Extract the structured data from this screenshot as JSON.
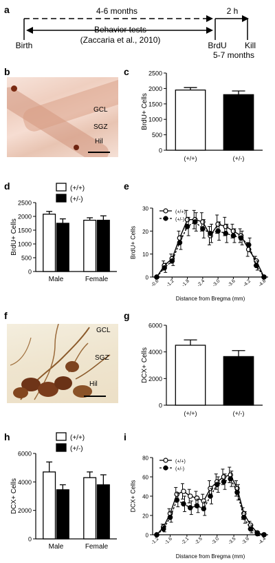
{
  "panels": {
    "a": {
      "letter": "a",
      "months_range": "4-6 months",
      "hours": "2 h",
      "behavior_tests": "Behavior tests",
      "citation": "(Zaccaria et al., 2010)",
      "birth": "Birth",
      "brdu": "BrdU",
      "kill": "Kill",
      "age_at_brdu": "5-7 months"
    },
    "b": {
      "letter": "b",
      "labels": [
        "GCL",
        "SGZ",
        "Hil"
      ]
    },
    "c": {
      "letter": "c"
    },
    "d": {
      "letter": "d"
    },
    "e": {
      "letter": "e"
    },
    "f": {
      "letter": "f",
      "labels": [
        "GCL",
        "SGZ",
        "Hil"
      ]
    },
    "g": {
      "letter": "g"
    },
    "h": {
      "letter": "h"
    },
    "i": {
      "letter": "i"
    }
  },
  "colors": {
    "wt": "#ffffff",
    "het": "#000000",
    "stroke": "#000000"
  },
  "chart_data": [
    {
      "id": "c",
      "type": "bar",
      "categories": [
        "(+/+)",
        "(+/-)"
      ],
      "values": [
        1950,
        1800
      ],
      "errors": [
        80,
        120
      ],
      "fills": [
        "#ffffff",
        "#000000"
      ],
      "ylabel": "BrdU+ Cells",
      "ylim": [
        0,
        2500
      ],
      "yticks": [
        0,
        500,
        1000,
        1500,
        2000,
        2500
      ]
    },
    {
      "id": "d",
      "type": "bar",
      "categories": [
        "Male",
        "Female"
      ],
      "series": [
        {
          "name": "(+/+)",
          "values": [
            2080,
            1860
          ],
          "errors": [
            100,
            90
          ]
        },
        {
          "name": "(+/-)",
          "values": [
            1750,
            1860
          ],
          "errors": [
            160,
            160
          ]
        }
      ],
      "ylabel": "BrdU+ Cells",
      "ylim": [
        0,
        2500
      ],
      "yticks": [
        0,
        500,
        1000,
        1500,
        2000,
        2500
      ],
      "legend": "top"
    },
    {
      "id": "e",
      "type": "line",
      "xlabel": "Distance from Bregma (mm)",
      "ylabel": "BrdU+ Cells",
      "xticks": [
        "-0.6",
        "-1.2",
        "-1.8",
        "-2.4",
        "-3.0",
        "-3.6",
        "-4.2",
        "-4.8"
      ],
      "x": [
        -0.6,
        -0.9,
        -1.2,
        -1.5,
        -1.8,
        -2.1,
        -2.4,
        -2.7,
        -3.0,
        -3.3,
        -3.6,
        -3.9,
        -4.2,
        -4.5,
        -4.8
      ],
      "ylim": [
        0,
        30
      ],
      "yticks": [
        0,
        10,
        20,
        30
      ],
      "series": [
        {
          "name": "(+/+)",
          "values": [
            0,
            5,
            8,
            17,
            25,
            25,
            24,
            18,
            23,
            22,
            20,
            18,
            12,
            7,
            0
          ],
          "errors": [
            0,
            2,
            2,
            3,
            4,
            4,
            4,
            4,
            4,
            4,
            3,
            3,
            3,
            2,
            0
          ]
        },
        {
          "name": "(+/-)",
          "values": [
            0,
            4,
            7,
            15,
            22,
            24,
            21,
            19,
            20,
            19,
            18,
            17,
            14,
            5,
            0
          ],
          "errors": [
            0,
            2,
            2,
            3,
            4,
            4,
            4,
            4,
            4,
            4,
            3,
            3,
            3,
            2,
            0
          ]
        }
      ],
      "legend": "top-left"
    },
    {
      "id": "g",
      "type": "bar",
      "categories": [
        "(+/+)",
        "(+/-)"
      ],
      "values": [
        4500,
        3650
      ],
      "errors": [
        400,
        450
      ],
      "fills": [
        "#ffffff",
        "#000000"
      ],
      "ylabel": "DCX+ Cells",
      "ylim": [
        0,
        6000
      ],
      "yticks": [
        0,
        2000,
        4000,
        6000
      ]
    },
    {
      "id": "h",
      "type": "bar",
      "categories": [
        "Male",
        "Female"
      ],
      "series": [
        {
          "name": "(+/+)",
          "values": [
            4700,
            4300
          ],
          "errors": [
            700,
            400
          ]
        },
        {
          "name": "(+/-)",
          "values": [
            3450,
            3800
          ],
          "errors": [
            350,
            700
          ]
        }
      ],
      "ylabel": "DCX+ Cells",
      "ylim": [
        0,
        6000
      ],
      "yticks": [
        0,
        2000,
        4000,
        6000
      ],
      "legend": "top"
    },
    {
      "id": "i",
      "type": "line",
      "xlabel": "Distance from Bregma (mm)",
      "ylabel": "DCX+ Cells",
      "xticks": [
        "-1.2",
        "-1.6",
        "-2.1",
        "-2.5",
        "-3.0",
        "-3.5",
        "-3.9",
        "-4.4"
      ],
      "x": [
        -1.2,
        -1.4,
        -1.6,
        -1.8,
        -2.0,
        -2.2,
        -2.4,
        -2.6,
        -2.8,
        -3.0,
        -3.2,
        -3.4,
        -3.6,
        -3.8,
        -4.0,
        -4.2,
        -4.4
      ],
      "ylim": [
        0,
        80
      ],
      "yticks": [
        0,
        20,
        40,
        60,
        80
      ],
      "series": [
        {
          "name": "(+/+)",
          "values": [
            0,
            8,
            22,
            42,
            45,
            40,
            38,
            35,
            48,
            55,
            60,
            62,
            48,
            22,
            10,
            2,
            0
          ],
          "errors": [
            0,
            3,
            5,
            7,
            8,
            7,
            7,
            7,
            8,
            8,
            8,
            8,
            8,
            6,
            4,
            2,
            0
          ]
        },
        {
          "name": "(+/-)",
          "values": [
            0,
            6,
            18,
            36,
            32,
            28,
            30,
            27,
            40,
            52,
            55,
            58,
            44,
            18,
            6,
            1,
            0
          ],
          "errors": [
            0,
            3,
            5,
            7,
            8,
            7,
            7,
            7,
            8,
            8,
            8,
            8,
            8,
            6,
            4,
            2,
            0
          ]
        }
      ],
      "legend": "top-left"
    }
  ]
}
